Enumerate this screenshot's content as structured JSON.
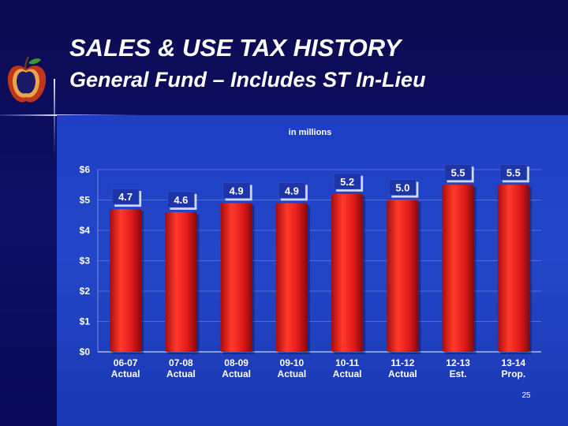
{
  "slide": {
    "title": "SALES & USE TAX HISTORY",
    "subtitle": "General Fund – Includes ST In-Lieu",
    "page_number": "25"
  },
  "colors": {
    "background": "#0b0b52",
    "chart_panel": "#2346c8",
    "bar": "#e01a1a",
    "text": "#ffffff"
  },
  "icons": [
    "apple-logo-icon"
  ],
  "chart_data": {
    "type": "bar",
    "title": "in millions",
    "categories": [
      "06-07 Actual",
      "07-08 Actual",
      "08-09 Actual",
      "09-10 Actual",
      "10-11 Actual",
      "11-12 Actual",
      "12-13 Est.",
      "13-14 Prop."
    ],
    "category_lines": [
      [
        "06-07",
        "Actual"
      ],
      [
        "07-08",
        "Actual"
      ],
      [
        "08-09",
        "Actual"
      ],
      [
        "09-10",
        "Actual"
      ],
      [
        "10-11",
        "Actual"
      ],
      [
        "11-12",
        "Actual"
      ],
      [
        "12-13",
        "Est."
      ],
      [
        "13-14",
        "Prop."
      ]
    ],
    "values": [
      4.7,
      4.6,
      4.9,
      4.9,
      5.2,
      5.0,
      5.5,
      5.5
    ],
    "value_labels": [
      "4.7",
      "4.6",
      "4.9",
      "4.9",
      "5.2",
      "5.0",
      "5.5",
      "5.5"
    ],
    "ylim": [
      0,
      6
    ],
    "yticks": [
      0,
      1,
      2,
      3,
      4,
      5,
      6
    ],
    "ytick_labels": [
      "$0",
      "$1",
      "$2",
      "$3",
      "$4",
      "$5",
      "$6"
    ],
    "xlabel": "",
    "ylabel": "",
    "grid": true,
    "legend": "none"
  }
}
